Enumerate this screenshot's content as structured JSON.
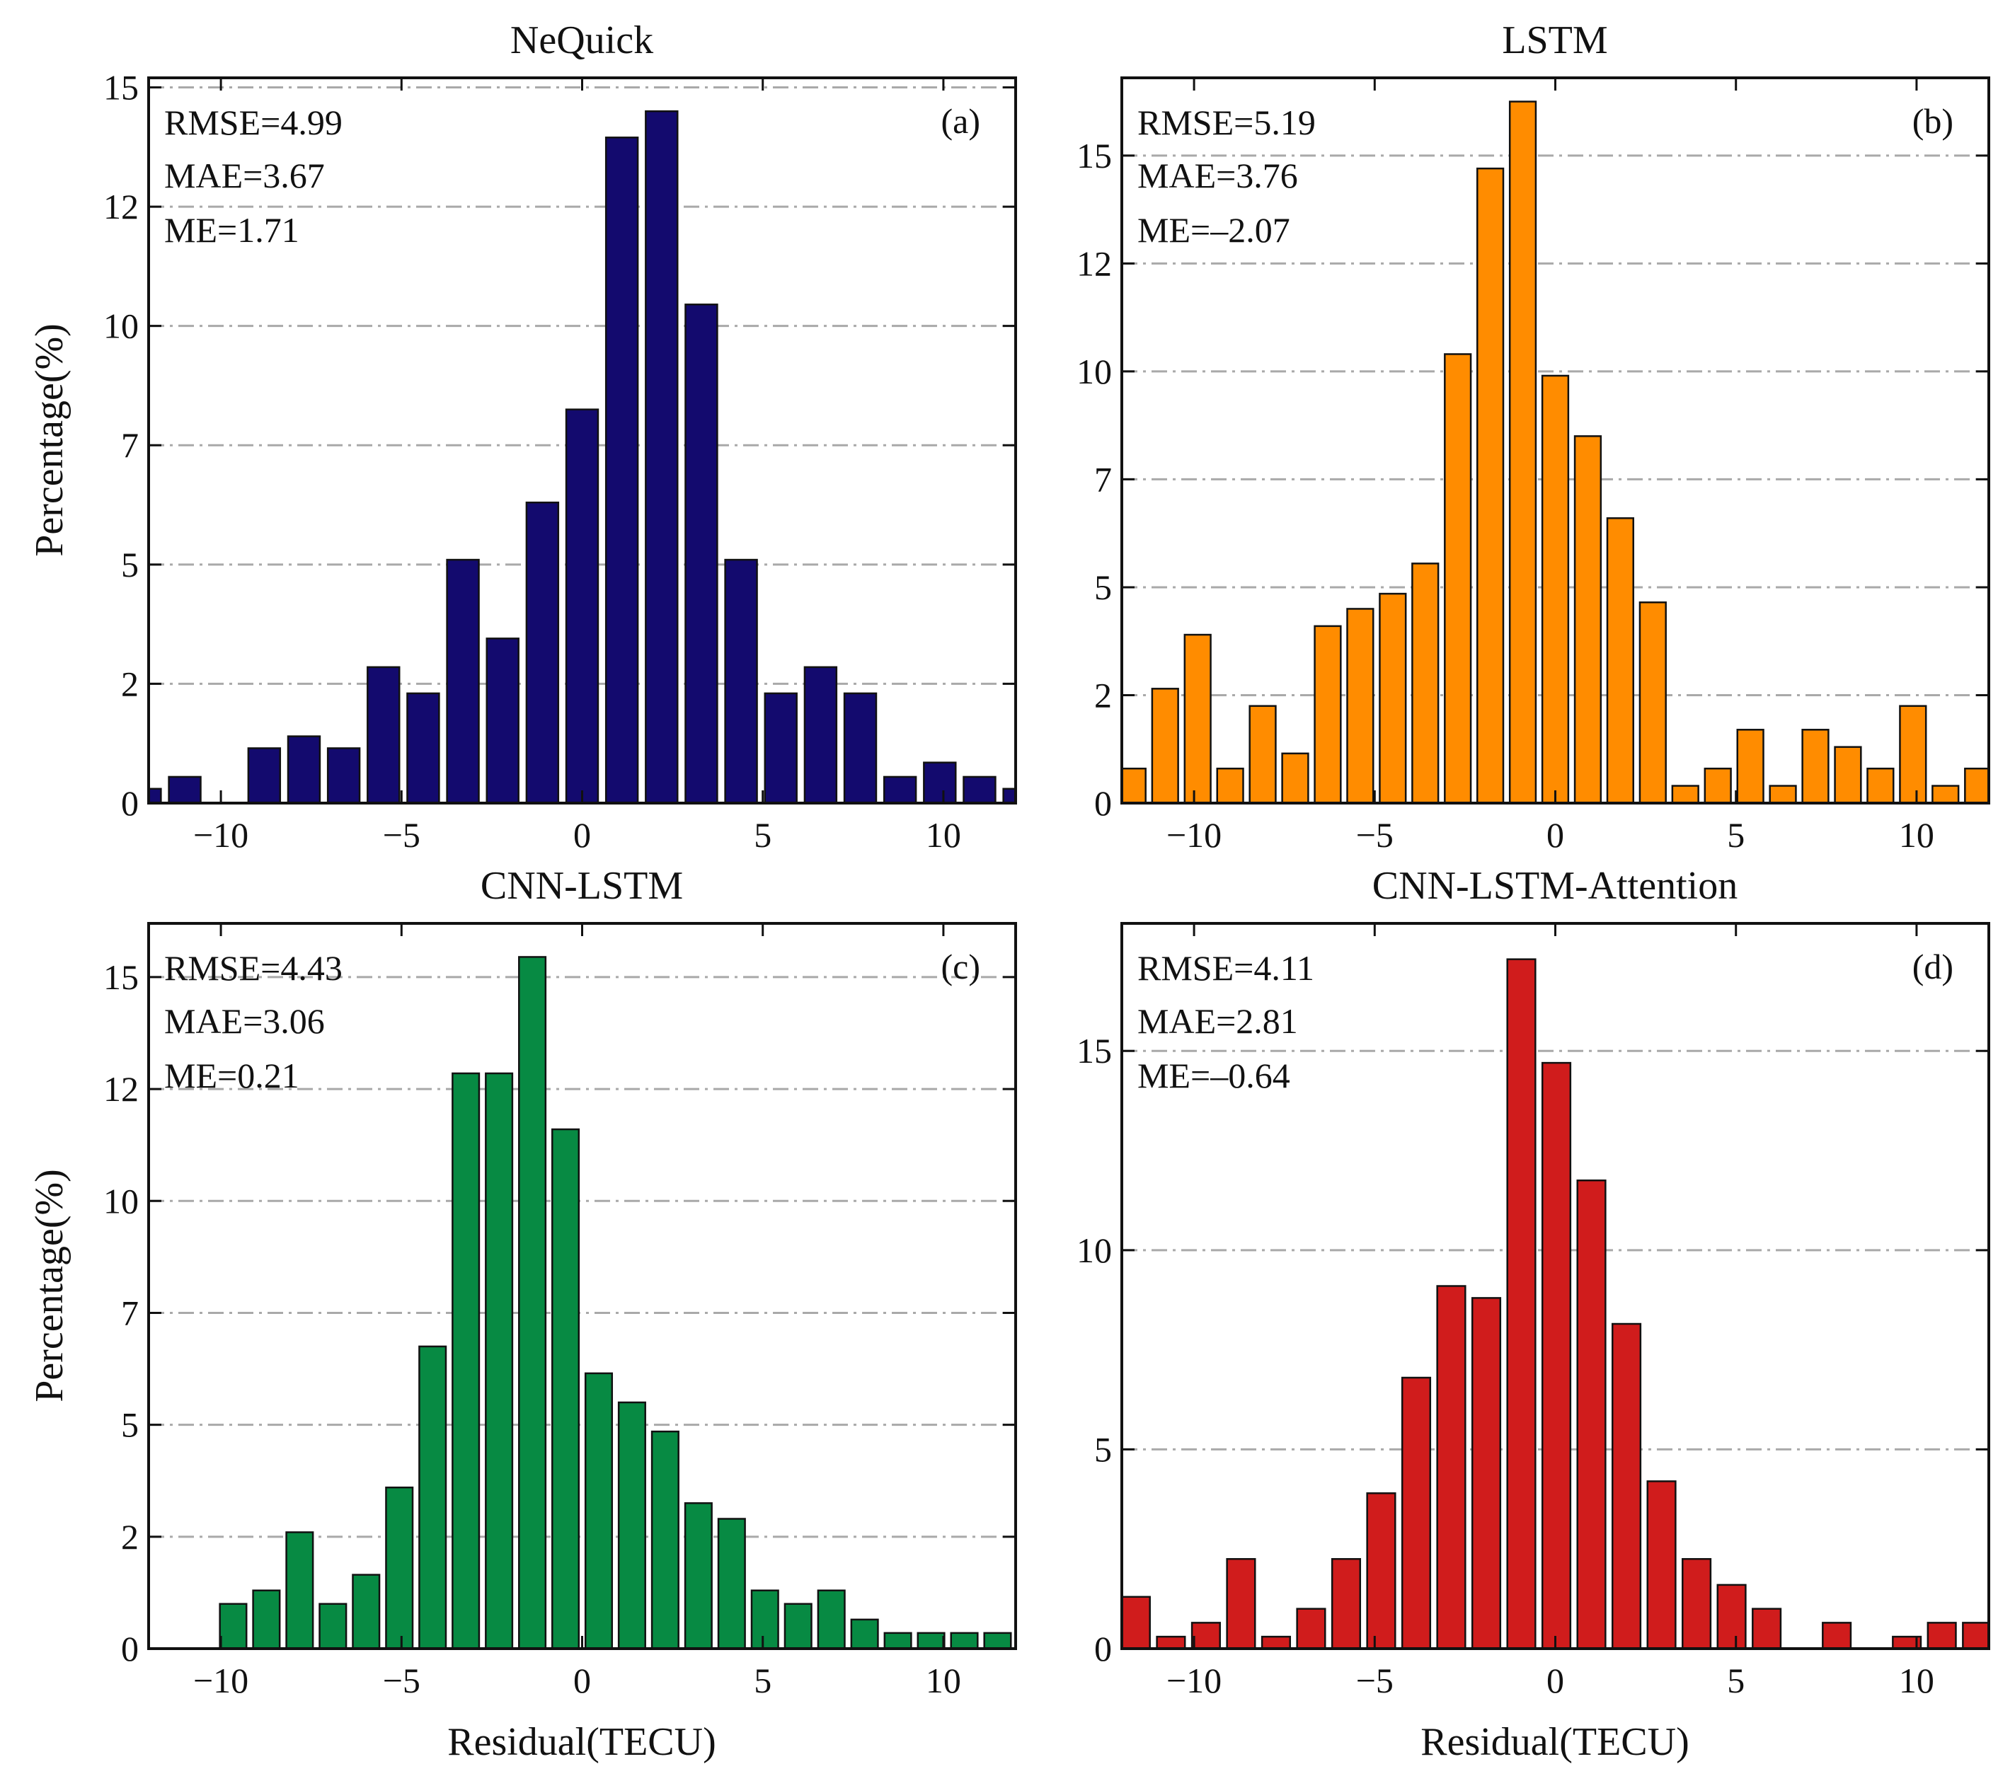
{
  "figure": {
    "x_axis_label": "Residual(TECU)",
    "y_axis_label": "Percentage(%)"
  },
  "chart_data": [
    {
      "type": "bar",
      "title": "NeQuick",
      "panel_tag": "(a)",
      "color": "#130a6e",
      "stats": [
        "RMSE=4.99",
        "MAE=3.67",
        "ME=1.71"
      ],
      "xlim": [
        -12,
        12
      ],
      "ylim": [
        0,
        15.2
      ],
      "xticks": [
        -10,
        -5,
        0,
        5,
        10
      ],
      "xtick_labels": [
        "−10",
        "−5",
        "0",
        "5",
        "10"
      ],
      "yticks": [
        0,
        2.5,
        5,
        7.5,
        10,
        12.5,
        15
      ],
      "ytick_labels": [
        "0",
        "2",
        "5",
        "7",
        "10",
        "12",
        "15"
      ],
      "bin_width": 1.1,
      "x": [
        -12.1,
        -11,
        -9.9,
        -8.8,
        -7.7,
        -6.6,
        -5.5,
        -4.4,
        -3.3,
        -2.2,
        -1.1,
        0,
        1.1,
        2.2,
        3.3,
        4.4,
        5.5,
        6.6,
        7.7,
        8.8,
        9.9,
        11,
        12.1
      ],
      "values": [
        0.3,
        0.55,
        0,
        1.15,
        1.4,
        1.15,
        2.85,
        2.3,
        5.1,
        3.45,
        6.3,
        8.25,
        13.95,
        14.5,
        10.45,
        5.1,
        2.3,
        2.85,
        2.3,
        0.55,
        0.85,
        0.55,
        0.3
      ]
    },
    {
      "type": "bar",
      "title": "LSTM",
      "panel_tag": "(b)",
      "color": "#ff8c00",
      "stats": [
        "RMSE=5.19",
        "MAE=3.76",
        "ME=–2.07"
      ],
      "xlim": [
        -12,
        12
      ],
      "ylim": [
        0,
        16.8
      ],
      "xticks": [
        -10,
        -5,
        0,
        5,
        10
      ],
      "xtick_labels": [
        "−10",
        "−5",
        "0",
        "5",
        "10"
      ],
      "yticks": [
        0,
        2.5,
        5,
        7.5,
        10,
        12.5,
        15
      ],
      "ytick_labels": [
        "0",
        "2",
        "5",
        "7",
        "10",
        "12",
        "15"
      ],
      "bin_width": 0.9,
      "x": [
        -11.7,
        -10.8,
        -9.9,
        -9,
        -8.1,
        -7.2,
        -6.3,
        -5.4,
        -4.5,
        -3.6,
        -2.7,
        -1.8,
        -0.9,
        0,
        0.9,
        1.8,
        2.7,
        3.6,
        4.5,
        5.4,
        6.3,
        7.2,
        8.1,
        9,
        9.9,
        10.8,
        11.7
      ],
      "values": [
        0.8,
        2.65,
        3.9,
        0.8,
        2.25,
        1.15,
        4.1,
        4.5,
        4.85,
        5.55,
        10.4,
        14.7,
        16.25,
        9.9,
        8.5,
        6.6,
        4.65,
        0.4,
        0.8,
        1.7,
        0.4,
        1.7,
        1.3,
        0.8,
        2.25,
        0.4,
        0.8
      ]
    },
    {
      "type": "bar",
      "title": "CNN-LSTM",
      "panel_tag": "(c)",
      "color": "#078a43",
      "stats": [
        "RMSE=4.43",
        "MAE=3.06",
        "ME=0.21"
      ],
      "xlim": [
        -12,
        12
      ],
      "ylim": [
        0,
        16.2
      ],
      "xticks": [
        -10,
        -5,
        0,
        5,
        10
      ],
      "xtick_labels": [
        "−10",
        "−5",
        "0",
        "5",
        "10"
      ],
      "yticks": [
        0,
        2.5,
        5,
        7.5,
        10,
        12.5,
        15
      ],
      "ytick_labels": [
        "0",
        "2",
        "5",
        "7",
        "10",
        "12",
        "15"
      ],
      "bin_width": 0.92,
      "x": [
        -9.66,
        -8.74,
        -7.82,
        -6.9,
        -5.98,
        -5.06,
        -4.14,
        -3.22,
        -2.3,
        -1.38,
        -0.46,
        0.46,
        1.38,
        2.3,
        3.22,
        4.14,
        5.06,
        5.98,
        6.9,
        7.82,
        8.74,
        9.66,
        10.58,
        11.5
      ],
      "values": [
        1,
        1.3,
        2.6,
        1,
        1.65,
        3.6,
        6.75,
        12.85,
        12.85,
        15.45,
        11.6,
        6.15,
        5.5,
        4.85,
        3.25,
        2.9,
        1.3,
        1,
        1.3,
        0.65,
        0.35,
        0.35,
        0.35,
        0.35
      ]
    },
    {
      "type": "bar",
      "title": "CNN-LSTM-Attention",
      "panel_tag": "(d)",
      "color": "#d01c1c",
      "stats": [
        "RMSE=4.11",
        "MAE=2.81",
        "ME=–0.64"
      ],
      "xlim": [
        -12,
        12
      ],
      "ylim": [
        0,
        18.2
      ],
      "xticks": [
        -10,
        -5,
        0,
        5,
        10
      ],
      "xtick_labels": [
        "−10",
        "−5",
        "0",
        "5",
        "10"
      ],
      "yticks": [
        0,
        5,
        10,
        15
      ],
      "ytick_labels": [
        "0",
        "5",
        "10",
        "15"
      ],
      "bin_width": 0.97,
      "x": [
        -11.61,
        -10.64,
        -9.67,
        -8.7,
        -7.73,
        -6.76,
        -5.79,
        -4.82,
        -3.85,
        -2.88,
        -1.91,
        -0.94,
        0.03,
        1,
        1.97,
        2.94,
        3.91,
        4.88,
        5.85,
        6.82,
        7.79,
        8.76,
        9.73,
        10.7,
        11.67
      ],
      "values": [
        1.3,
        0.3,
        0.65,
        2.25,
        0.3,
        1,
        2.25,
        3.9,
        6.8,
        9.1,
        8.8,
        17.3,
        14.7,
        11.75,
        8.15,
        4.2,
        2.25,
        1.6,
        1,
        0,
        0.65,
        0,
        0.3,
        0.65,
        0.65
      ]
    }
  ]
}
